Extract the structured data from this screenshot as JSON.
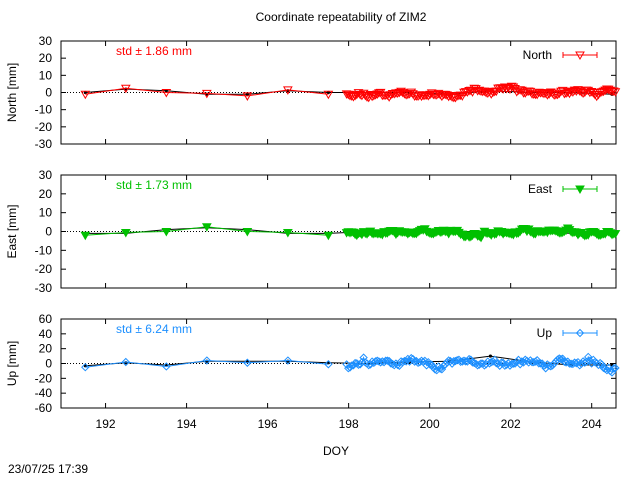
{
  "title": "Coordinate repeatability of ZIM2",
  "timestamp": "23/07/25 17:39",
  "chart_data": [
    {
      "type": "scatter",
      "component": "north",
      "legend": "North",
      "std_label": "std ± 1.86 mm",
      "ylabel": "North [mm]",
      "color": "#ff0000",
      "marker": "triangle-down-open",
      "ylim": [
        -30,
        30
      ],
      "yticks": [
        -30,
        -20,
        -10,
        0,
        10,
        20,
        30
      ],
      "xlim": [
        190.9,
        204.6
      ],
      "daily": {
        "x": [
          191.5,
          192.5,
          193.5,
          194.5,
          195.5,
          196.5,
          197.5,
          198.5,
          199.5,
          200.5,
          201.5,
          202.5,
          203.5,
          204.5
        ],
        "y": [
          0,
          2,
          1,
          -1,
          -1,
          1,
          0,
          0,
          0,
          -1,
          1,
          0,
          0,
          -1
        ]
      },
      "series_seed": 11,
      "series_amp": 1.86
    },
    {
      "type": "scatter",
      "component": "east",
      "legend": "East",
      "std_label": "std ± 1.73 mm",
      "ylabel": "East [mm]",
      "color": "#00c000",
      "marker": "triangle-down-filled",
      "ylim": [
        -30,
        30
      ],
      "yticks": [
        -30,
        -20,
        -10,
        0,
        10,
        20,
        30
      ],
      "xlim": [
        190.9,
        204.6
      ],
      "daily": {
        "x": [
          191.5,
          192.5,
          193.5,
          194.5,
          195.5,
          196.5,
          197.5,
          198.5,
          199.5,
          200.5,
          201.5,
          202.5,
          203.5,
          204.5
        ],
        "y": [
          -1,
          -1,
          1,
          2,
          1,
          -1,
          -1,
          0,
          0,
          0,
          0,
          0,
          -1,
          0
        ]
      },
      "series_seed": 23,
      "series_amp": 1.73
    },
    {
      "type": "scatter",
      "component": "up",
      "legend": "Up",
      "std_label": "std ± 6.24 mm",
      "ylabel": "Up [mm]",
      "color": "#1e90ff",
      "marker": "diamond-open",
      "ylim": [
        -60,
        60
      ],
      "yticks": [
        -60,
        -40,
        -20,
        0,
        20,
        40,
        60
      ],
      "xlim": [
        190.9,
        204.6
      ],
      "daily": {
        "x": [
          191.5,
          192.5,
          193.5,
          194.5,
          195.5,
          196.5,
          197.5,
          198.5,
          199.5,
          200.5,
          201.5,
          202.5,
          203.5,
          204.5
        ],
        "y": [
          -3,
          1,
          -2,
          3,
          3,
          3,
          1,
          0,
          2,
          3,
          10,
          2,
          -2,
          -2
        ]
      },
      "series_seed": 37,
      "series_amp": 6.24
    }
  ],
  "xaxis": {
    "label": "DOY",
    "ticks": [
      192,
      194,
      196,
      198,
      200,
      202,
      204
    ]
  }
}
